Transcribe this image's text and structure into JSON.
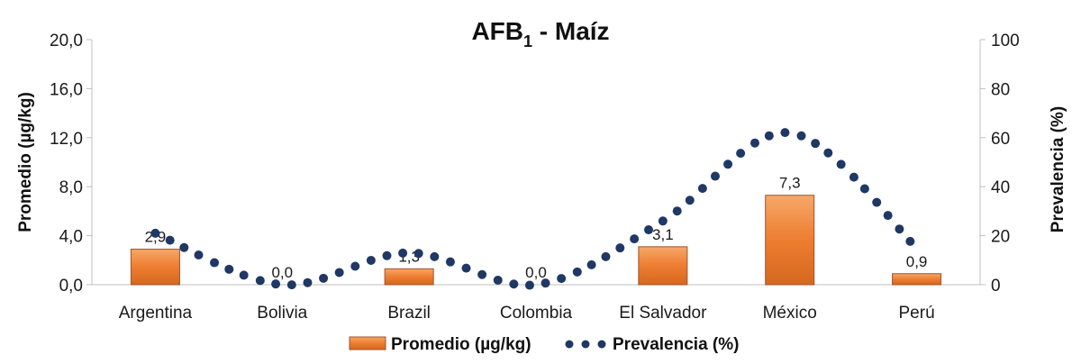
{
  "chart_data": {
    "type": "bar",
    "title_main": "AFB",
    "title_sub": "1",
    "title_rest": " - Maíz",
    "categories": [
      "Argentina",
      "Bolivia",
      "Brazil",
      "Colombia",
      "El Salvador",
      "México",
      "Perú"
    ],
    "series": [
      {
        "name": "Promedio (µg/kg)",
        "type": "bar",
        "axis": "left",
        "color": "#ED7D31",
        "values": [
          2.9,
          0.0,
          1.3,
          0.0,
          3.1,
          7.3,
          0.9
        ],
        "labels": [
          "2,9",
          "0,0",
          "1,3",
          "0,0",
          "3,1",
          "7,3",
          "0,9"
        ]
      },
      {
        "name": "Prevalencia (%)",
        "type": "line",
        "style": "dotted-smooth",
        "axis": "right",
        "color": "#1F3864",
        "values": [
          21,
          0,
          13,
          0,
          26,
          62,
          15
        ]
      }
    ],
    "ylabel_left": "Promedio (µg/kg)",
    "ylabel_right": "Prevalencia (%)",
    "ylim_left": [
      0,
      20
    ],
    "ylim_right": [
      0,
      100
    ],
    "yticks_left": [
      "0,0",
      "4,0",
      "8,0",
      "12,0",
      "16,0",
      "20,0"
    ],
    "yticks_right": [
      "0",
      "20",
      "40",
      "60",
      "80",
      "100"
    ],
    "legend_placement": "bottom",
    "grid": false
  }
}
